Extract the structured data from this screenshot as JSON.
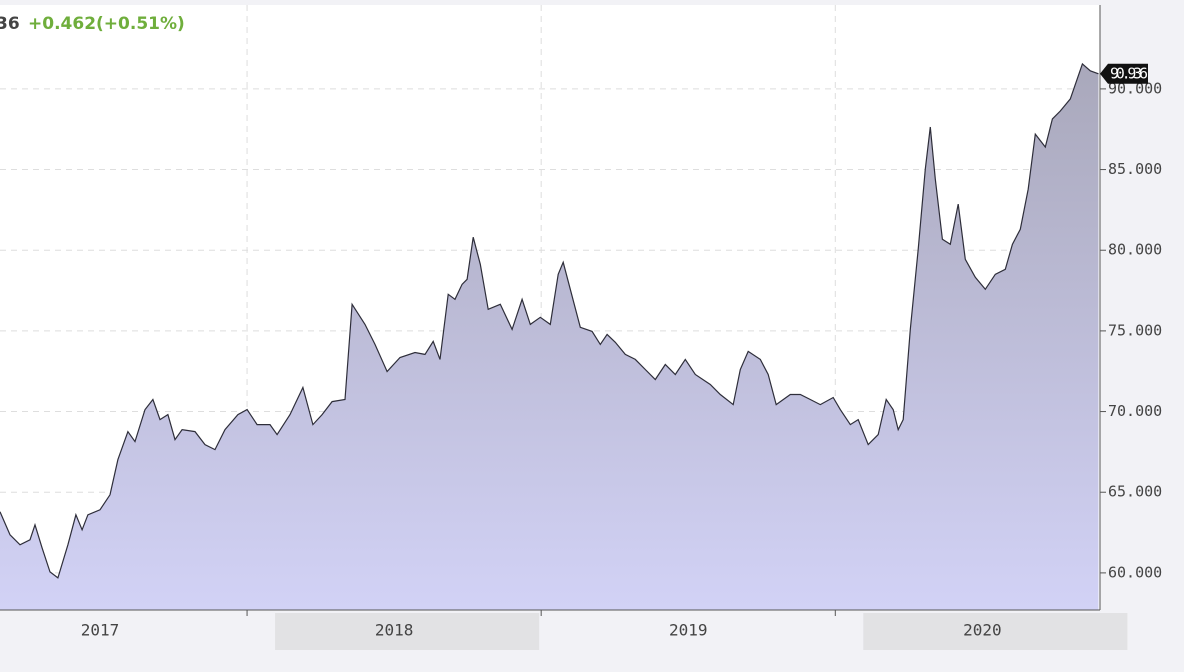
{
  "chart_data": {
    "type": "area",
    "price_fragment": "36",
    "change": "+0.462(+0.51%)",
    "line_color": "#2e2e3a",
    "fill_top": "#a9a8bb",
    "fill_bottom": "#d2d2f6",
    "grid": true,
    "xlim": [
      2017.16,
      2020.9
    ],
    "xticks": [
      {
        "value": 2017,
        "label": "2017"
      },
      {
        "value": 2018,
        "label": "2018"
      },
      {
        "value": 2019,
        "label": "2019"
      },
      {
        "value": 2020,
        "label": "2020"
      }
    ],
    "ylim": [
      57.7,
      95.2
    ],
    "yticks": [
      {
        "value": 60,
        "label": "60.000"
      },
      {
        "value": 65,
        "label": "65.000"
      },
      {
        "value": 70,
        "label": "70.000"
      },
      {
        "value": 75,
        "label": "75.000"
      },
      {
        "value": 80,
        "label": "80.000"
      },
      {
        "value": 85,
        "label": "85.000"
      },
      {
        "value": 90,
        "label": "90.000"
      }
    ],
    "x": [
      2017.16,
      2017.194,
      2017.228,
      2017.262,
      2017.279,
      2017.303,
      2017.33,
      2017.357,
      2017.391,
      2017.418,
      2017.439,
      2017.459,
      2017.5,
      2017.534,
      2017.561,
      2017.595,
      2017.619,
      2017.653,
      2017.68,
      2017.704,
      2017.731,
      2017.755,
      2017.779,
      2017.823,
      2017.857,
      2017.891,
      2017.925,
      2017.969,
      2018.0,
      2018.034,
      2018.078,
      2018.102,
      2018.146,
      2018.19,
      2018.224,
      2018.255,
      2018.289,
      2018.333,
      2018.357,
      2018.401,
      2018.435,
      2018.476,
      2018.52,
      2018.571,
      2018.605,
      2018.633,
      2018.656,
      2018.684,
      2018.707,
      2018.731,
      2018.748,
      2018.769,
      2018.793,
      2018.82,
      2018.861,
      2018.901,
      2018.935,
      2018.963,
      2018.997,
      2019.031,
      2019.058,
      2019.075,
      2019.099,
      2019.133,
      2019.173,
      2019.201,
      2019.224,
      2019.252,
      2019.286,
      2019.32,
      2019.354,
      2019.388,
      2019.422,
      2019.456,
      2019.49,
      2019.524,
      2019.575,
      2019.609,
      2019.653,
      2019.677,
      2019.704,
      2019.745,
      2019.772,
      2019.799,
      2019.847,
      2019.881,
      2019.915,
      2019.949,
      2019.993,
      2020.017,
      2020.051,
      2020.078,
      2020.112,
      2020.146,
      2020.173,
      2020.197,
      2020.214,
      2020.231,
      2020.255,
      2020.282,
      2020.306,
      2020.323,
      2020.34,
      2020.364,
      2020.391,
      2020.418,
      2020.442,
      2020.476,
      2020.51,
      2020.544,
      2020.578,
      2020.602,
      2020.629,
      2020.656,
      2020.68,
      2020.714,
      2020.738,
      2020.765,
      2020.799,
      2020.84,
      2020.867,
      2020.895
    ],
    "values": [
      63.79,
      62.36,
      61.74,
      62.05,
      62.98,
      61.55,
      60.06,
      59.69,
      61.74,
      63.6,
      62.67,
      63.6,
      63.91,
      64.84,
      67.02,
      68.76,
      68.14,
      70.12,
      70.75,
      69.5,
      69.81,
      68.26,
      68.88,
      68.76,
      67.95,
      67.64,
      68.88,
      69.81,
      70.12,
      69.19,
      69.19,
      68.57,
      69.81,
      71.49,
      69.19,
      69.81,
      70.62,
      70.75,
      76.65,
      75.4,
      74.16,
      72.48,
      73.35,
      73.66,
      73.54,
      74.35,
      73.23,
      77.27,
      76.96,
      77.89,
      78.2,
      80.81,
      79.13,
      76.34,
      76.65,
      75.09,
      76.96,
      75.4,
      75.84,
      75.4,
      78.51,
      79.25,
      77.58,
      75.22,
      74.97,
      74.16,
      74.78,
      74.29,
      73.54,
      73.23,
      72.61,
      71.99,
      72.92,
      72.3,
      73.23,
      72.3,
      71.68,
      71.06,
      70.43,
      72.61,
      73.73,
      73.23,
      72.3,
      70.43,
      71.06,
      71.06,
      70.75,
      70.43,
      70.87,
      70.12,
      69.19,
      69.5,
      67.95,
      68.57,
      70.75,
      70.12,
      68.88,
      69.5,
      75.09,
      80.06,
      85.03,
      87.64,
      84.41,
      80.68,
      80.37,
      82.86,
      79.44,
      78.32,
      77.58,
      78.51,
      78.82,
      80.37,
      81.3,
      83.79,
      87.2,
      86.4,
      88.14,
      88.63,
      89.38,
      91.55,
      91.12,
      90.936
    ]
  }
}
